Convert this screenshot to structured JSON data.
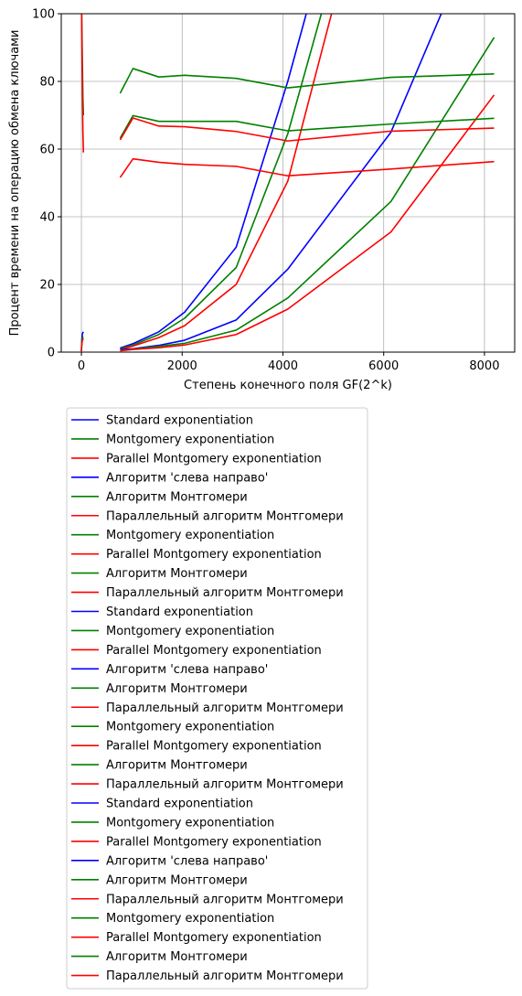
{
  "chart_data": {
    "type": "line",
    "title": "",
    "xlabel": "Степень конечного поля GF(2^k)",
    "ylabel": "Процент времени на операцию обмена ключами",
    "xlim": [
      -400,
      8600
    ],
    "ylim": [
      0,
      100
    ],
    "xticks": [
      0,
      2000,
      4000,
      6000,
      8000
    ],
    "yticks": [
      0,
      20,
      40,
      60,
      80,
      100
    ],
    "grid": true,
    "legend_position": "below",
    "colors": {
      "blue": "#0000ff",
      "green": "#008000",
      "red": "#ff0000",
      "grid": "#b0b0b0"
    },
    "series": [
      {
        "color": "blue",
        "x": [
          1,
          2,
          5,
          10,
          20,
          40
        ],
        "y": [
          0.3,
          0.8,
          2,
          4,
          5.5,
          6
        ]
      },
      {
        "color": "green",
        "x": [
          1,
          2,
          5,
          10,
          20,
          40
        ],
        "y": [
          0.3,
          1,
          2,
          3.5,
          4.2,
          4.5
        ]
      },
      {
        "color": "red",
        "x": [
          1,
          2,
          5,
          10,
          20,
          40
        ],
        "y": [
          0.2,
          0.8,
          1.5,
          2.5,
          3.5,
          4
        ]
      },
      {
        "color": "green",
        "x": [
          5,
          10,
          20,
          30,
          40
        ],
        "y": [
          100,
          95,
          85,
          75,
          70
        ]
      },
      {
        "color": "red",
        "x": [
          5,
          10,
          20,
          30,
          40
        ],
        "y": [
          100,
          90,
          75,
          65,
          59
        ]
      },
      {
        "color": "blue",
        "x": [
          769,
          1024,
          1536,
          2048,
          3072,
          4096,
          4500
        ],
        "y": [
          1.2,
          2.5,
          6,
          11.8,
          31,
          80,
          102
        ]
      },
      {
        "color": "green",
        "x": [
          769,
          1024,
          1536,
          2048,
          3072,
          4096,
          4800
        ],
        "y": [
          1,
          2.1,
          5.2,
          10,
          25,
          64.5,
          102
        ]
      },
      {
        "color": "red",
        "x": [
          769,
          1024,
          1536,
          2048,
          3072,
          4096,
          5000
        ],
        "y": [
          0.8,
          1.8,
          4.3,
          7.8,
          20,
          50.5,
          102
        ]
      },
      {
        "color": "blue",
        "x": [
          769,
          1024,
          1536,
          2048,
          3072,
          4096,
          6144,
          7200
        ],
        "y": [
          0.8,
          1,
          2,
          3.5,
          9.5,
          24.5,
          65,
          102
        ]
      },
      {
        "color": "green",
        "x": [
          769,
          1024,
          1536,
          2048,
          3072,
          4096,
          6144,
          8192
        ],
        "y": [
          0.5,
          0.9,
          1.7,
          2.6,
          6.5,
          16,
          44.5,
          93
        ]
      },
      {
        "color": "red",
        "x": [
          769,
          1024,
          1536,
          2048,
          3072,
          4096,
          6144,
          8192
        ],
        "y": [
          0.4,
          0.8,
          1.3,
          2.1,
          5.2,
          12.7,
          35.5,
          76
        ]
      },
      {
        "color": "green",
        "x": [
          769,
          1024,
          1536,
          2048,
          3072,
          4096,
          6144,
          8192
        ],
        "y": [
          76.5,
          83.8,
          81.3,
          81.8,
          80.9,
          78.1,
          81.2,
          82.2
        ]
      },
      {
        "color": "green",
        "x": [
          769,
          1024,
          1536,
          2048,
          3072,
          4096,
          6144,
          8192
        ],
        "y": [
          63.2,
          69.9,
          68.2,
          68.2,
          68.2,
          65.4,
          67.4,
          69.1
        ]
      },
      {
        "color": "red",
        "x": [
          769,
          1024,
          1536,
          2048,
          3072,
          4096,
          6144,
          8192
        ],
        "y": [
          62.7,
          69.2,
          66.8,
          66.6,
          65.2,
          62.4,
          65.3,
          66.2
        ]
      },
      {
        "color": "red",
        "x": [
          769,
          1024,
          1536,
          2048,
          3072,
          4096,
          6144,
          8192
        ],
        "y": [
          51.6,
          57.1,
          56.1,
          55.5,
          54.9,
          52.1,
          54.1,
          56.3
        ]
      }
    ]
  },
  "legend": {
    "entries": [
      {
        "label": "Standard exponentiation",
        "color": "blue"
      },
      {
        "label": "Montgomery exponentiation",
        "color": "green"
      },
      {
        "label": "Parallel Montgomery exponentiation",
        "color": "red"
      },
      {
        "label": "Алгоритм 'слева направо'",
        "color": "blue"
      },
      {
        "label": "Алгоритм Монтгомери",
        "color": "green"
      },
      {
        "label": "Параллельный алгоритм Монтгомери",
        "color": "red"
      },
      {
        "label": "Montgomery exponentiation",
        "color": "green"
      },
      {
        "label": "Parallel Montgomery exponentiation",
        "color": "red"
      },
      {
        "label": "Алгоритм Монтгомери",
        "color": "green"
      },
      {
        "label": "Параллельный алгоритм Монтгомери",
        "color": "red"
      },
      {
        "label": "Standard exponentiation",
        "color": "blue"
      },
      {
        "label": "Montgomery exponentiation",
        "color": "green"
      },
      {
        "label": "Parallel Montgomery exponentiation",
        "color": "red"
      },
      {
        "label": "Алгоритм 'слева направо'",
        "color": "blue"
      },
      {
        "label": "Алгоритм Монтгомери",
        "color": "green"
      },
      {
        "label": "Параллельный алгоритм Монтгомери",
        "color": "red"
      },
      {
        "label": "Montgomery exponentiation",
        "color": "green"
      },
      {
        "label": "Parallel Montgomery exponentiation",
        "color": "red"
      },
      {
        "label": "Алгоритм Монтгомери",
        "color": "green"
      },
      {
        "label": "Параллельный алгоритм Монтгомери",
        "color": "red"
      },
      {
        "label": "Standard exponentiation",
        "color": "blue"
      },
      {
        "label": "Montgomery exponentiation",
        "color": "green"
      },
      {
        "label": "Parallel Montgomery exponentiation",
        "color": "red"
      },
      {
        "label": "Алгоритм 'слева направо'",
        "color": "blue"
      },
      {
        "label": "Алгоритм Монтгомери",
        "color": "green"
      },
      {
        "label": "Параллельный алгоритм Монтгомери",
        "color": "red"
      },
      {
        "label": "Montgomery exponentiation",
        "color": "green"
      },
      {
        "label": "Parallel Montgomery exponentiation",
        "color": "red"
      },
      {
        "label": "Алгоритм Монтгомери",
        "color": "green"
      },
      {
        "label": "Параллельный алгоритм Монтгомери",
        "color": "red"
      }
    ]
  }
}
